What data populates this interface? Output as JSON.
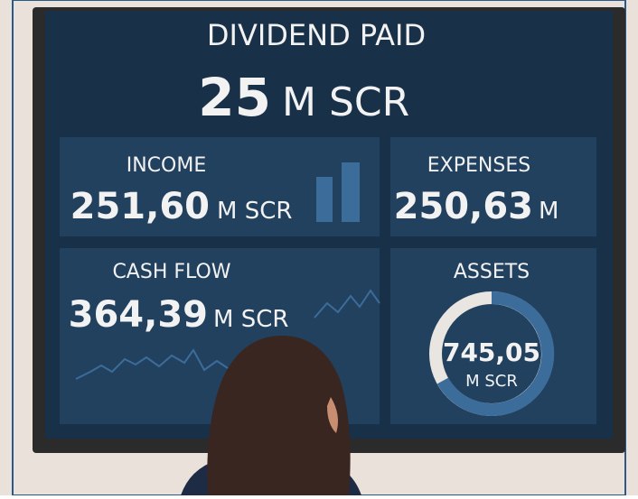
{
  "dividend": {
    "title": "DIVIDEND PAID",
    "value": "25",
    "unit": "M SCR"
  },
  "cards": [
    {
      "title": "INCOME",
      "value": "251,60",
      "unit": "M SCR"
    },
    {
      "title": "EXPENSES",
      "value": "250,63",
      "unit": "M"
    },
    {
      "title": "CASH FLOW",
      "value": "364,39",
      "unit": "M SCR"
    },
    {
      "title": "ASSETS",
      "value": "745,05",
      "unit": "M SCR"
    }
  ]
}
